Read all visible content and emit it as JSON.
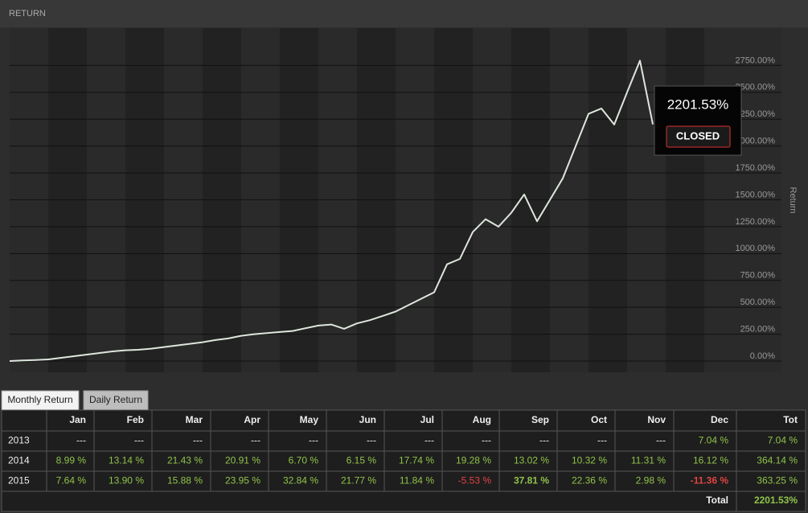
{
  "header": {
    "title": "RETURN"
  },
  "chart_data": {
    "type": "line",
    "y_label": "Return",
    "color": "#dde6dc",
    "values": [
      0,
      5,
      10,
      15,
      30,
      45,
      60,
      75,
      90,
      100,
      105,
      115,
      130,
      145,
      160,
      175,
      195,
      210,
      235,
      250,
      260,
      270,
      280,
      305,
      330,
      340,
      300,
      350,
      380,
      420,
      460,
      520,
      580,
      640,
      900,
      950,
      1200,
      1320,
      1250,
      1380,
      1550,
      1300,
      1500,
      1700,
      2000,
      2300,
      2350,
      2200,
      2500,
      2795,
      2201.53
    ],
    "ylim": [
      0,
      3000
    ],
    "yticks": [
      {
        "value": 0,
        "label": "0.00%"
      },
      {
        "value": 250,
        "label": "250.00%"
      },
      {
        "value": 500,
        "label": "500.00%"
      },
      {
        "value": 750,
        "label": "750.00%"
      },
      {
        "value": 1000,
        "label": "1000.00%"
      },
      {
        "value": 1250,
        "label": "1250.00%"
      },
      {
        "value": 1500,
        "label": "1500.00%"
      },
      {
        "value": 1750,
        "label": "1750.00%"
      },
      {
        "value": 2000,
        "label": "2000.00%"
      },
      {
        "value": 2250,
        "label": "2250.00%"
      },
      {
        "value": 2500,
        "label": "2500.00%"
      },
      {
        "value": 2750,
        "label": "2750.00%"
      }
    ],
    "grid": true,
    "tooltip": {
      "value": 2201.53,
      "label": "2201.53%",
      "status": "CLOSED"
    }
  },
  "tabs": [
    "Monthly Return",
    "Daily Return"
  ],
  "table": {
    "columns": [
      "Jan",
      "Feb",
      "Mar",
      "Apr",
      "May",
      "Jun",
      "Jul",
      "Aug",
      "Sep",
      "Oct",
      "Nov",
      "Dec",
      "Tot"
    ],
    "rows": [
      {
        "year": "2013",
        "cells": [
          "---",
          "---",
          "---",
          "---",
          "---",
          "---",
          "---",
          "---",
          "---",
          "---",
          "---",
          "7.04 %",
          "7.04 %"
        ]
      },
      {
        "year": "2014",
        "cells": [
          "8.99 %",
          "13.14 %",
          "21.43 %",
          "20.91 %",
          "6.70 %",
          "6.15 %",
          "17.74 %",
          "19.28 %",
          "13.02 %",
          "10.32 %",
          "11.31 %",
          "16.12 %",
          "364.14 %"
        ]
      },
      {
        "year": "2015",
        "cells": [
          "7.64 %",
          "13.90 %",
          "15.88 %",
          "23.95 %",
          "32.84 %",
          "21.77 %",
          "11.84 %",
          "-5.53 %",
          "37.81 %",
          "22.36 %",
          "2.98 %",
          "-11.36 %",
          "363.25 %"
        ]
      }
    ],
    "total": {
      "label": "Total",
      "value": "2201.53%"
    }
  }
}
